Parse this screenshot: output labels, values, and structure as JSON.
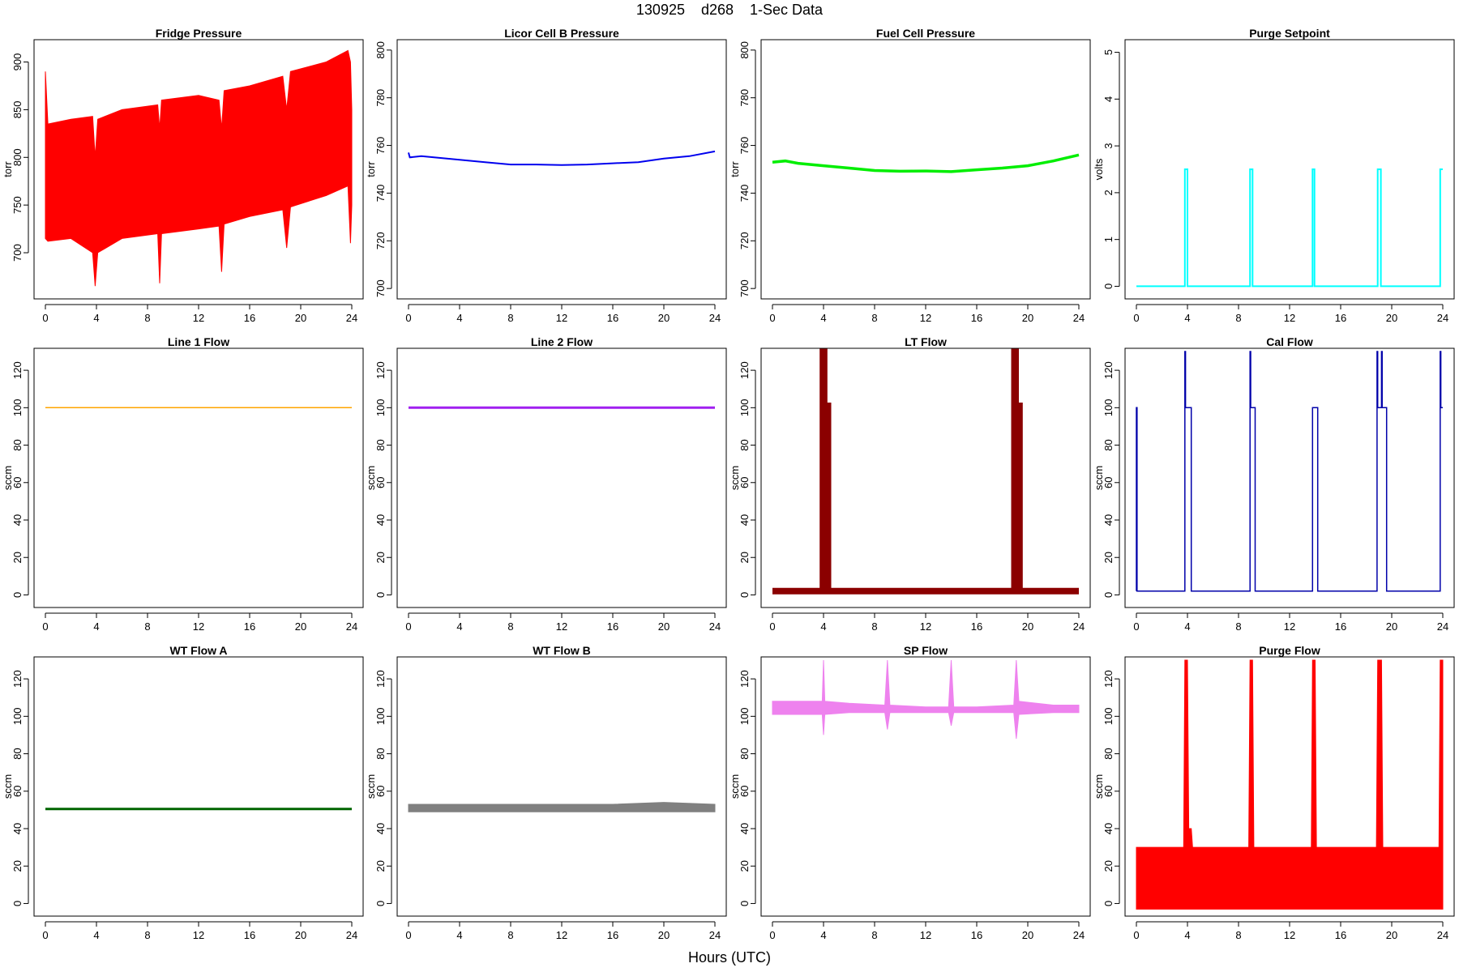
{
  "figure": {
    "title": "130925    d268    1-Sec Data",
    "xlabel": "Hours (UTC)"
  },
  "chart_data": [
    {
      "type": "line",
      "title": "Fridge Pressure",
      "ylabel": "torr",
      "color": "#ff0000",
      "xlim": [
        0,
        24
      ],
      "ylim": [
        655,
        920
      ],
      "xticks": [
        0,
        4,
        8,
        12,
        16,
        20,
        24
      ],
      "yticks": [
        700,
        750,
        800,
        850,
        900
      ],
      "envelope": {
        "x": [
          0,
          0.2,
          2,
          3.7,
          3.9,
          4.1,
          6,
          8.8,
          8.95,
          9.1,
          12,
          13.6,
          13.8,
          14,
          16,
          18.6,
          18.9,
          19.2,
          22,
          23.7,
          23.9,
          24
        ],
        "upper": [
          890,
          835,
          840,
          843,
          800,
          840,
          850,
          855,
          830,
          860,
          865,
          860,
          830,
          870,
          875,
          885,
          850,
          890,
          900,
          912,
          900,
          850
        ],
        "lower": [
          715,
          712,
          715,
          700,
          665,
          700,
          715,
          720,
          668,
          720,
          725,
          728,
          680,
          730,
          738,
          745,
          705,
          748,
          760,
          770,
          710,
          750
        ]
      }
    },
    {
      "type": "line",
      "title": "Licor Cell B Pressure",
      "ylabel": "torr",
      "color": "#0000ee",
      "xlim": [
        0,
        24
      ],
      "ylim": [
        697,
        803
      ],
      "xticks": [
        0,
        4,
        8,
        12,
        16,
        20,
        24
      ],
      "yticks": [
        700,
        720,
        740,
        760,
        780,
        800
      ],
      "x": [
        0,
        0.1,
        1,
        2,
        4,
        6,
        8,
        10,
        12,
        14,
        16,
        18,
        20,
        22,
        24
      ],
      "y": [
        757,
        755,
        755.5,
        755,
        754,
        753,
        752,
        752,
        751.8,
        752,
        752.5,
        753,
        754.5,
        755.5,
        757.5
      ]
    },
    {
      "type": "line",
      "title": "Fuel Cell Pressure",
      "ylabel": "torr",
      "color": "#00ee00",
      "xlim": [
        0,
        24
      ],
      "ylim": [
        697,
        803
      ],
      "xticks": [
        0,
        4,
        8,
        12,
        16,
        20,
        24
      ],
      "yticks": [
        700,
        720,
        740,
        760,
        780,
        800
      ],
      "x": [
        0,
        1,
        2,
        4,
        6,
        8,
        10,
        12,
        14,
        16,
        18,
        20,
        22,
        24
      ],
      "y": [
        753,
        753.5,
        752.5,
        751.5,
        750.5,
        749.5,
        749.2,
        749.3,
        749,
        749.8,
        750.5,
        751.5,
        753.5,
        756
      ]
    },
    {
      "type": "line",
      "title": "Purge Setpoint",
      "ylabel": "volts",
      "color": "#00ffff",
      "xlim": [
        0,
        24
      ],
      "ylim": [
        -0.2,
        5.2
      ],
      "xticks": [
        0,
        4,
        8,
        12,
        16,
        20,
        24
      ],
      "yticks": [
        0,
        1,
        2,
        3,
        4,
        5
      ],
      "x": [
        0,
        3.8,
        3.8,
        4.0,
        4.0,
        8.9,
        8.9,
        9.1,
        9.1,
        13.8,
        13.8,
        13.95,
        13.95,
        18.9,
        18.9,
        19.15,
        19.15,
        23.8,
        23.8,
        24
      ],
      "y": [
        0,
        0,
        2.5,
        2.5,
        0,
        0,
        2.5,
        2.5,
        0,
        0,
        2.5,
        2.5,
        0,
        0,
        2.5,
        2.5,
        0,
        0,
        2.5,
        2.5
      ]
    },
    {
      "type": "line",
      "title": "Line 1 Flow",
      "ylabel": "sccm",
      "color": "#ffa500",
      "xlim": [
        0,
        24
      ],
      "ylim": [
        -5,
        130
      ],
      "xticks": [
        0,
        4,
        8,
        12,
        16,
        20,
        24
      ],
      "yticks": [
        0,
        20,
        40,
        60,
        80,
        100,
        120
      ],
      "x": [
        0,
        24
      ],
      "y": [
        100,
        100
      ]
    },
    {
      "type": "line",
      "title": "Line 2 Flow",
      "ylabel": "sccm",
      "color": "#a020f0",
      "xlim": [
        0,
        24
      ],
      "ylim": [
        -5,
        130
      ],
      "xticks": [
        0,
        4,
        8,
        12,
        16,
        20,
        24
      ],
      "yticks": [
        0,
        20,
        40,
        60,
        80,
        100,
        120
      ],
      "x": [
        0,
        24
      ],
      "y": [
        100,
        100
      ]
    },
    {
      "type": "line",
      "title": "LT Flow",
      "ylabel": "sccm",
      "color": "#8b0000",
      "xlim": [
        0,
        24
      ],
      "ylim": [
        -5,
        130
      ],
      "xticks": [
        0,
        4,
        8,
        12,
        16,
        20,
        24
      ],
      "yticks": [
        0,
        20,
        40,
        60,
        80,
        100,
        120
      ],
      "x": [
        0,
        3.95,
        3.95,
        4.05,
        4.05,
        4.35,
        4.35,
        18.95,
        18.95,
        19.05,
        19.05,
        19.35,
        19.35,
        24
      ],
      "y": [
        2,
        2,
        130,
        130,
        101,
        101,
        2,
        2,
        130,
        130,
        101,
        101,
        2,
        2
      ]
    },
    {
      "type": "line",
      "title": "Cal Flow",
      "ylabel": "sccm",
      "color": "#0000aa",
      "xlim": [
        0,
        24
      ],
      "ylim": [
        -5,
        130
      ],
      "xticks": [
        0,
        4,
        8,
        12,
        16,
        20,
        24
      ],
      "yticks": [
        0,
        20,
        40,
        60,
        80,
        100,
        120
      ],
      "x": [
        0,
        0,
        0.05,
        0.05,
        3.8,
        3.8,
        3.85,
        3.85,
        4.3,
        4.3,
        8.9,
        8.9,
        8.95,
        8.95,
        9.3,
        9.3,
        13.8,
        13.8,
        14.2,
        14.2,
        18.85,
        18.85,
        18.9,
        18.9,
        19.2,
        19.2,
        19.25,
        19.25,
        19.6,
        19.6,
        23.8,
        23.8,
        23.85,
        23.85,
        24
      ],
      "y": [
        2,
        100,
        100,
        2,
        2,
        130,
        130,
        100,
        100,
        2,
        2,
        130,
        130,
        100,
        100,
        2,
        2,
        100,
        100,
        2,
        2,
        130,
        130,
        100,
        100,
        130,
        130,
        100,
        100,
        2,
        2,
        130,
        130,
        100,
        100
      ]
    },
    {
      "type": "line",
      "title": "WT Flow A",
      "ylabel": "sccm",
      "color": "#006400",
      "xlim": [
        0,
        24
      ],
      "ylim": [
        -5,
        130
      ],
      "xticks": [
        0,
        4,
        8,
        12,
        16,
        20,
        24
      ],
      "yticks": [
        0,
        20,
        40,
        60,
        80,
        100,
        120
      ],
      "x": [
        0,
        24
      ],
      "y": [
        50.5,
        50.5
      ]
    },
    {
      "type": "line",
      "title": "WT Flow B",
      "ylabel": "sccm",
      "color": "#808080",
      "xlim": [
        0,
        24
      ],
      "ylim": [
        -5,
        130
      ],
      "xticks": [
        0,
        4,
        8,
        12,
        16,
        20,
        24
      ],
      "yticks": [
        0,
        20,
        40,
        60,
        80,
        100,
        120
      ],
      "envelope": {
        "x": [
          0,
          4,
          8,
          12,
          16,
          20,
          24
        ],
        "upper": [
          53,
          53,
          53,
          53,
          53,
          54,
          53
        ],
        "lower": [
          49,
          49,
          49,
          49,
          49,
          49,
          49
        ]
      }
    },
    {
      "type": "line",
      "title": "SP Flow",
      "ylabel": "sccm",
      "color": "#ee82ee",
      "xlim": [
        0,
        24
      ],
      "ylim": [
        -5,
        130
      ],
      "xticks": [
        0,
        4,
        8,
        12,
        16,
        20,
        24
      ],
      "yticks": [
        0,
        20,
        40,
        60,
        80,
        100,
        120
      ],
      "envelope": {
        "x": [
          0,
          2,
          3.9,
          4,
          4.1,
          6,
          8.8,
          9,
          9.2,
          12,
          13.8,
          14,
          14.2,
          16,
          18.9,
          19.1,
          19.3,
          22,
          24
        ],
        "upper": [
          108,
          108,
          108,
          130,
          108,
          107,
          106,
          130,
          106,
          105,
          105,
          130,
          105,
          105,
          106,
          130,
          108,
          106,
          106
        ],
        "lower": [
          101,
          101,
          101,
          90,
          101,
          102,
          102,
          93,
          102,
          102,
          102,
          95,
          102,
          102,
          102,
          88,
          101,
          102,
          102
        ]
      }
    },
    {
      "type": "line",
      "title": "Purge Flow",
      "ylabel": "sccm",
      "color": "#ff0000",
      "xlim": [
        0,
        24
      ],
      "ylim": [
        -5,
        130
      ],
      "xticks": [
        0,
        4,
        8,
        12,
        16,
        20,
        24
      ],
      "yticks": [
        0,
        20,
        40,
        60,
        80,
        100,
        120
      ],
      "envelope": {
        "x": [
          0,
          3.7,
          3.8,
          4.0,
          4.1,
          4.3,
          4.4,
          8.8,
          8.9,
          9.1,
          9.2,
          13.7,
          13.8,
          14.0,
          14.1,
          18.8,
          18.9,
          19.2,
          19.3,
          23.7,
          23.8,
          24
        ],
        "upper": [
          30,
          30,
          130,
          130,
          40,
          40,
          30,
          30,
          130,
          130,
          30,
          30,
          130,
          130,
          30,
          30,
          130,
          130,
          30,
          30,
          130,
          130
        ],
        "lower": [
          -3,
          -3,
          -3,
          -3,
          -3,
          -3,
          -3,
          -3,
          -3,
          -3,
          -3,
          -3,
          -3,
          -3,
          -3,
          -3,
          -3,
          -3,
          -3,
          -3,
          -3,
          -3
        ]
      }
    }
  ]
}
